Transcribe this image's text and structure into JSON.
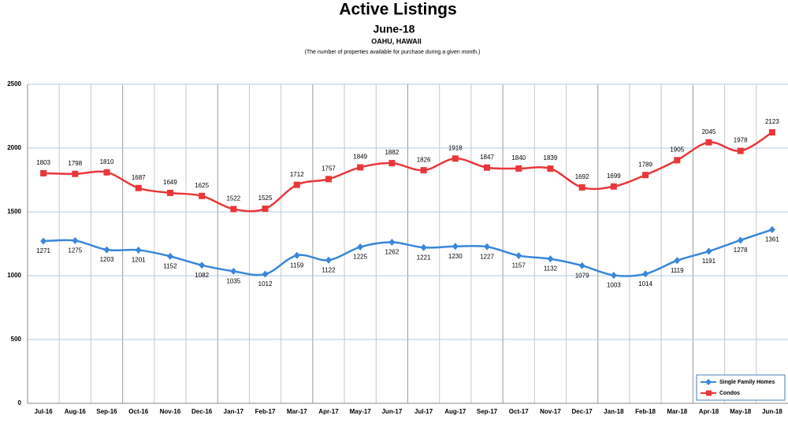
{
  "chart_data": {
    "type": "line",
    "title": "Active Listings",
    "subtitle": "June-18",
    "location": "OAHU, HAWAII",
    "note": "(The number of properties available for purchase during a given month.)",
    "categories": [
      "Jul-16",
      "Aug-16",
      "Sep-16",
      "Oct-16",
      "Nov-16",
      "Dec-16",
      "Jan-17",
      "Feb-17",
      "Mar-17",
      "Apr-17",
      "May-17",
      "Jun-17",
      "Jul-17",
      "Aug-17",
      "Sep-17",
      "Oct-17",
      "Nov-17",
      "Dec-17",
      "Jan-18",
      "Feb-18",
      "Mar-18",
      "Apr-18",
      "May-18",
      "Jun-18"
    ],
    "series": [
      {
        "name": "Single Family Homes",
        "color": "#3a87d9",
        "marker": "diamond",
        "values": [
          1271,
          1275,
          1203,
          1201,
          1152,
          1082,
          1035,
          1012,
          1159,
          1122,
          1225,
          1262,
          1221,
          1230,
          1227,
          1157,
          1132,
          1079,
          1003,
          1014,
          1119,
          1191,
          1278,
          1361
        ]
      },
      {
        "name": "Condos",
        "color": "#e8373a",
        "marker": "square",
        "values": [
          1803,
          1798,
          1810,
          1687,
          1649,
          1625,
          1522,
          1525,
          1712,
          1757,
          1849,
          1882,
          1826,
          1918,
          1847,
          1840,
          1839,
          1692,
          1699,
          1789,
          1905,
          2045,
          1978,
          2123
        ]
      }
    ],
    "ylim": [
      0,
      2500
    ],
    "yticks": [
      0,
      500,
      1000,
      1500,
      2000,
      2500
    ],
    "grid": true,
    "legend": "lower right"
  }
}
